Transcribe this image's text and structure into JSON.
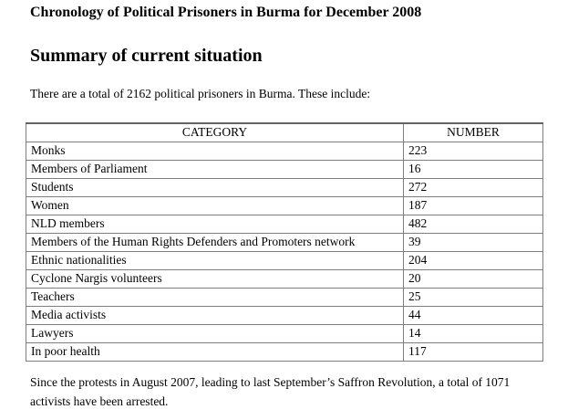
{
  "document": {
    "title": "Chronology of Political Prisoners in Burma for December 2008",
    "section_heading": "Summary of current situation",
    "intro_text": "There are a total of 2162 political prisoners in Burma. These include:",
    "closing_text": "Since the protests in August 2007, leading to last September’s Saffron Revolution, a total of 1071 activists have been arrested."
  },
  "table": {
    "headers": {
      "category": "CATEGORY",
      "number": "NUMBER"
    },
    "rows": [
      {
        "category": "Monks",
        "number": "223"
      },
      {
        "category": "Members of Parliament",
        "number": "16"
      },
      {
        "category": "Students",
        "number": "272"
      },
      {
        "category": "Women",
        "number": "187"
      },
      {
        "category": "NLD members",
        "number": "482"
      },
      {
        "category": "Members of the Human Rights Defenders and Promoters network",
        "number": "39"
      },
      {
        "category": "Ethnic nationalities",
        "number": "204"
      },
      {
        "category": "Cyclone Nargis volunteers",
        "number": "20"
      },
      {
        "category": "Teachers",
        "number": "25"
      },
      {
        "category": "Media activists",
        "number": "44"
      },
      {
        "category": "Lawyers",
        "number": "14"
      },
      {
        "category": "In poor health",
        "number": "117"
      }
    ]
  }
}
